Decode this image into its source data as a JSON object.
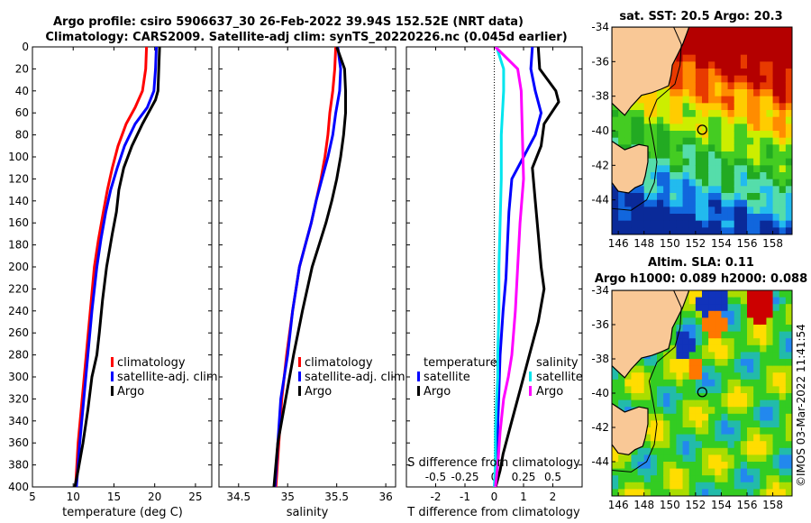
{
  "header": {
    "line1": "Argo profile: csiro 5906637_30 26-Feb-2022 39.94S 152.52E (NRT data)",
    "line2": "Climatology: CARS2009. Satellite-adj clim: synTS_20220226.nc (0.045d earlier)"
  },
  "colors": {
    "climatology": "#ff0000",
    "satellite": "#0000ff",
    "argo": "#000000",
    "salinity_satellite": "#00e5ee",
    "salinity_argo": "#ff00ff",
    "land": "#f9c896"
  },
  "chart_data": [
    {
      "type": "line",
      "name": "temperature-profile",
      "xlabel": "temperature (deg C)",
      "ylabel": "",
      "xlim": [
        5,
        27
      ],
      "ylim": [
        400,
        0
      ],
      "xticks": [
        "5",
        "10",
        "15",
        "20",
        "25"
      ],
      "xtick_values": [
        5,
        10,
        15,
        20,
        25
      ],
      "yticks": [
        "0",
        "20",
        "40",
        "60",
        "80",
        "100",
        "120",
        "140",
        "160",
        "180",
        "200",
        "220",
        "240",
        "260",
        "280",
        "300",
        "320",
        "340",
        "360",
        "380",
        "400"
      ],
      "ytick_values": [
        0,
        20,
        40,
        60,
        80,
        100,
        120,
        140,
        160,
        180,
        200,
        220,
        240,
        260,
        280,
        300,
        320,
        340,
        360,
        380,
        400
      ],
      "legend": [
        "climatology",
        "satellite-adj. clim",
        "Argo"
      ],
      "series": [
        {
          "name": "climatology",
          "color": "#ff0000",
          "x": [
            19.0,
            18.9,
            18.5,
            17.6,
            16.5,
            15.5,
            14.8,
            14.2,
            13.7,
            13.1,
            12.6,
            12.1,
            11.6,
            11.1,
            10.6,
            10.3
          ],
          "y": [
            0,
            20,
            40,
            55,
            70,
            90,
            110,
            130,
            150,
            175,
            200,
            240,
            280,
            320,
            360,
            400
          ]
        },
        {
          "name": "satellite-adj. clim",
          "color": "#0000ff",
          "x": [
            20.2,
            20.1,
            19.9,
            19.1,
            17.6,
            16.3,
            15.4,
            14.6,
            14.0,
            13.4,
            12.9,
            12.3,
            11.8,
            11.3,
            10.8,
            10.4
          ],
          "y": [
            0,
            20,
            40,
            55,
            70,
            90,
            110,
            130,
            150,
            175,
            200,
            240,
            280,
            320,
            360,
            400
          ]
        },
        {
          "name": "Argo",
          "color": "#000000",
          "x": [
            20.6,
            20.5,
            20.4,
            20.1,
            18.5,
            17.2,
            16.2,
            15.6,
            15.3,
            14.8,
            14.1,
            13.6,
            13.2,
            12.9,
            12.3,
            11.8,
            11.2,
            10.6,
            10.2
          ],
          "y": [
            0,
            20,
            40,
            48,
            70,
            90,
            110,
            130,
            150,
            170,
            200,
            230,
            260,
            280,
            300,
            330,
            360,
            385,
            400
          ]
        }
      ]
    },
    {
      "type": "line",
      "name": "salinity-profile",
      "xlabel": "salinity",
      "ylabel": "",
      "xlim": [
        34.3,
        36.1
      ],
      "ylim": [
        400,
        0
      ],
      "xticks": [
        "34.5",
        "35",
        "35.5",
        "36"
      ],
      "xtick_values": [
        34.5,
        35,
        35.5,
        36
      ],
      "legend": [
        "climatology",
        "satellite-adj. clim",
        "Argo"
      ],
      "series": [
        {
          "name": "climatology",
          "color": "#ff0000",
          "x": [
            35.49,
            35.48,
            35.46,
            35.43,
            35.41,
            35.38,
            35.34,
            35.29,
            35.24,
            35.18,
            35.12,
            35.05,
            34.99,
            34.94,
            34.88
          ],
          "y": [
            0,
            20,
            40,
            60,
            80,
            100,
            120,
            140,
            160,
            180,
            200,
            240,
            280,
            320,
            400
          ]
        },
        {
          "name": "satellite-adj. clim",
          "color": "#0000ff",
          "x": [
            35.51,
            35.54,
            35.53,
            35.49,
            35.46,
            35.41,
            35.35,
            35.29,
            35.24,
            35.18,
            35.12,
            35.05,
            35.0,
            34.93,
            34.87
          ],
          "y": [
            0,
            20,
            40,
            60,
            80,
            100,
            120,
            140,
            160,
            180,
            200,
            240,
            280,
            320,
            400
          ]
        },
        {
          "name": "Argo",
          "color": "#000000",
          "x": [
            35.5,
            35.58,
            35.59,
            35.59,
            35.57,
            35.54,
            35.5,
            35.45,
            35.39,
            35.32,
            35.25,
            35.15,
            35.06,
            34.98,
            34.9,
            34.86
          ],
          "y": [
            0,
            20,
            40,
            60,
            80,
            100,
            120,
            140,
            160,
            180,
            200,
            240,
            280,
            320,
            360,
            400
          ]
        }
      ]
    },
    {
      "type": "line",
      "name": "difference-profile",
      "xlabel": "T difference from climatology",
      "ylabel": "",
      "xlim": [
        -3,
        3
      ],
      "ylim": [
        400,
        0
      ],
      "xticks": [
        "-2",
        "-1",
        "0",
        "1",
        "2"
      ],
      "xtick_values": [
        -2,
        -1,
        0,
        1,
        2
      ],
      "secondary_label": "S difference from climatology",
      "secondary_ticks": [
        "-0.5",
        "-0.25",
        "0",
        "0.25",
        "0.5"
      ],
      "secondary_tick_values": [
        -0.5,
        -0.25,
        0,
        0.25,
        0.5
      ],
      "legend_temperature": [
        "temperature",
        "satellite",
        "Argo"
      ],
      "legend_salinity": [
        "salinity",
        "satellite",
        "Argo"
      ],
      "series": [
        {
          "name": "temperature satellite",
          "color": "#0000ff",
          "x": [
            1.3,
            1.25,
            1.4,
            1.6,
            1.4,
            1.0,
            0.6,
            0.5,
            0.45,
            0.4,
            0.3,
            0.2,
            0.15,
            0.1,
            0.05
          ],
          "y": [
            0,
            20,
            40,
            60,
            80,
            100,
            120,
            150,
            180,
            210,
            240,
            280,
            320,
            360,
            400
          ]
        },
        {
          "name": "temperature Argo",
          "color": "#000000",
          "x": [
            1.5,
            1.55,
            2.1,
            2.2,
            1.7,
            1.6,
            1.3,
            1.4,
            1.5,
            1.6,
            1.7,
            1.5,
            1.2,
            0.9,
            0.6,
            0.3,
            0.2,
            0.05
          ],
          "y": [
            0,
            20,
            40,
            50,
            70,
            90,
            110,
            140,
            170,
            200,
            220,
            250,
            280,
            310,
            340,
            370,
            385,
            400
          ]
        },
        {
          "name": "salinity satellite",
          "color": "#00e5ee",
          "x": [
            0.02,
            0.08,
            0.08,
            0.06,
            0.06,
            0.05,
            0.04,
            0.04,
            0.03,
            0.03,
            0.02,
            0.01,
            0.01,
            0.0
          ],
          "y": [
            0,
            20,
            40,
            80,
            120,
            160,
            200,
            240,
            280,
            300,
            320,
            350,
            380,
            400
          ]
        },
        {
          "name": "salinity Argo",
          "color": "#ff00ff",
          "x": [
            0.01,
            0.2,
            0.23,
            0.24,
            0.25,
            0.22,
            0.2,
            0.18,
            0.15,
            0.12,
            0.08,
            0.05,
            0.03,
            0.01
          ],
          "y": [
            0,
            20,
            40,
            80,
            120,
            160,
            200,
            240,
            280,
            300,
            320,
            350,
            380,
            400
          ]
        }
      ]
    },
    {
      "type": "heatmap",
      "name": "sst-map",
      "title": "sat. SST: 20.5 Argo: 20.3",
      "xlim": [
        145.5,
        159.5
      ],
      "ylim": [
        -46,
        -34
      ],
      "xticks": [
        "146",
        "148",
        "150",
        "152",
        "154",
        "156",
        "158"
      ],
      "xtick_values": [
        146,
        148,
        150,
        152,
        154,
        156,
        158
      ],
      "yticks": [
        "-34",
        "-36",
        "-38",
        "-40",
        "-42",
        "-44"
      ],
      "ytick_values": [
        -34,
        -36,
        -38,
        -40,
        -42,
        -44
      ],
      "marker": {
        "lon": 152.52,
        "lat": -39.94
      }
    },
    {
      "type": "heatmap",
      "name": "sla-map",
      "title": "Altim. SLA: 0.11",
      "subtitle": "Argo h1000: 0.089 h2000: 0.088",
      "xlim": [
        145.5,
        159.5
      ],
      "ylim": [
        -46,
        -34
      ],
      "xticks": [
        "146",
        "148",
        "150",
        "152",
        "154",
        "156",
        "158"
      ],
      "xtick_values": [
        146,
        148,
        150,
        152,
        154,
        156,
        158
      ],
      "yticks": [
        "-34",
        "-36",
        "-38",
        "-40",
        "-42",
        "-44"
      ],
      "ytick_values": [
        -34,
        -36,
        -38,
        -40,
        -42,
        -44
      ],
      "marker": {
        "lon": 152.52,
        "lat": -39.94
      }
    }
  ],
  "watermark": "©IMOS 03-Mar-2022 11:41:54"
}
